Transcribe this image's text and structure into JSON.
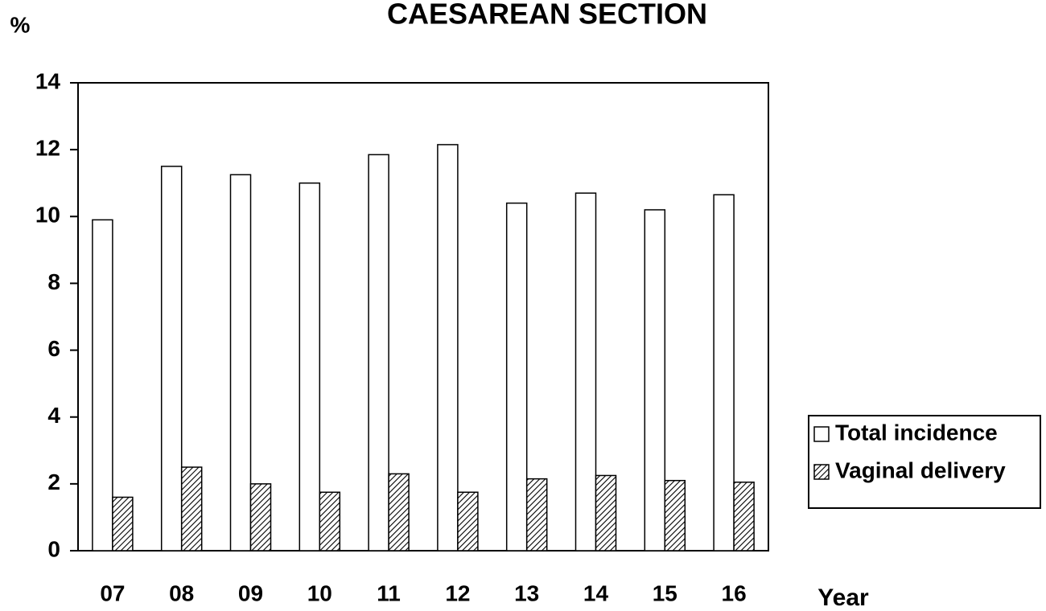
{
  "chart_data": {
    "type": "bar",
    "title": "CAESAREAN SECTION",
    "y_label": "%",
    "x_label": "Year",
    "categories": [
      "07",
      "08",
      "09",
      "10",
      "11",
      "12",
      "13",
      "14",
      "15",
      "16"
    ],
    "series": [
      {
        "name": "Total incidence",
        "color": "#ffffff",
        "fill": "solid",
        "values": [
          9.9,
          11.5,
          11.25,
          11.0,
          11.85,
          12.15,
          10.4,
          10.7,
          10.2,
          10.65
        ]
      },
      {
        "name": "Vaginal delivery",
        "color": "#000000",
        "fill": "hatch",
        "values": [
          1.6,
          2.5,
          2.0,
          1.75,
          2.3,
          1.75,
          2.15,
          2.25,
          2.1,
          2.05
        ]
      }
    ],
    "ylim": [
      0,
      14
    ],
    "yticks": [
      0,
      2,
      4,
      6,
      8,
      10,
      12,
      14
    ],
    "grid": false,
    "legend": "right"
  }
}
